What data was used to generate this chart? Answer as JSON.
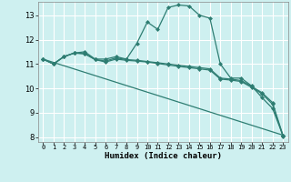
{
  "xlabel": "Humidex (Indice chaleur)",
  "background_color": "#cef0f0",
  "line_color": "#2e7d72",
  "xlim": [
    -0.5,
    23.5
  ],
  "ylim": [
    7.8,
    13.55
  ],
  "yticks": [
    8,
    9,
    10,
    11,
    12,
    13
  ],
  "xticks": [
    0,
    1,
    2,
    3,
    4,
    5,
    6,
    7,
    8,
    9,
    10,
    11,
    12,
    13,
    14,
    15,
    16,
    17,
    18,
    19,
    20,
    21,
    22,
    23
  ],
  "series": [
    {
      "x": [
        0,
        1,
        2,
        3,
        4,
        5,
        6,
        7,
        8,
        9,
        10,
        11,
        12,
        13,
        14,
        15,
        16,
        17,
        18,
        19,
        20,
        21,
        22,
        23
      ],
      "y": [
        11.2,
        11.0,
        11.3,
        11.45,
        11.5,
        11.2,
        11.2,
        11.3,
        11.2,
        11.85,
        12.72,
        12.42,
        13.32,
        13.42,
        13.38,
        13.0,
        12.88,
        11.0,
        10.42,
        10.42,
        10.1,
        9.62,
        9.18,
        8.08
      ],
      "marker": "D",
      "markersize": 2.0,
      "linewidth": 0.9
    },
    {
      "x": [
        0,
        1,
        2,
        3,
        4,
        5,
        6,
        7,
        8,
        9,
        10,
        11,
        12,
        13,
        14,
        15,
        16,
        17,
        18,
        19,
        20,
        21,
        22,
        23
      ],
      "y": [
        11.2,
        11.0,
        11.3,
        11.45,
        11.42,
        11.18,
        11.12,
        11.25,
        11.18,
        11.15,
        11.1,
        11.05,
        11.0,
        10.95,
        10.9,
        10.85,
        10.8,
        10.42,
        10.38,
        10.32,
        10.08,
        9.82,
        9.42,
        8.08
      ],
      "marker": "D",
      "markersize": 2.0,
      "linewidth": 0.9
    },
    {
      "x": [
        0,
        1,
        2,
        3,
        4,
        5,
        6,
        7,
        8,
        9,
        10,
        11,
        12,
        13,
        14,
        15,
        16,
        17,
        18,
        19,
        20,
        21,
        22,
        23
      ],
      "y": [
        11.2,
        11.0,
        11.3,
        11.45,
        11.42,
        11.18,
        11.08,
        11.2,
        11.15,
        11.12,
        11.08,
        11.02,
        10.96,
        10.9,
        10.85,
        10.8,
        10.75,
        10.38,
        10.34,
        10.28,
        10.04,
        9.78,
        9.35,
        8.04
      ],
      "marker": "D",
      "markersize": 2.0,
      "linewidth": 0.9
    },
    {
      "x": [
        0,
        23
      ],
      "y": [
        11.2,
        8.08
      ],
      "marker": "D",
      "markersize": 2.0,
      "linewidth": 0.9
    }
  ]
}
